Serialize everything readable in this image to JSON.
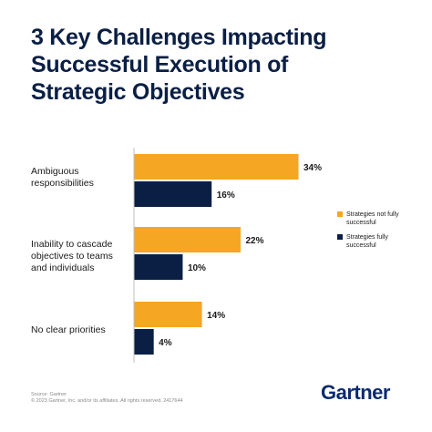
{
  "title_lines": [
    "3 Key Challenges Impacting",
    "Successful Execution of",
    "Strategic Objectives"
  ],
  "chart_data": {
    "type": "bar",
    "orientation": "horizontal",
    "categories": [
      [
        "Ambiguous",
        "responsibilities"
      ],
      [
        "Inability to cascade",
        "objectives to teams",
        "and individuals"
      ],
      [
        "No clear priorities"
      ]
    ],
    "series": [
      {
        "name": "Strategies not fully successful",
        "color": "#f5a623",
        "values": [
          34,
          22,
          14
        ],
        "labels": [
          "34%",
          "22%",
          "14%"
        ]
      },
      {
        "name": "Strategies fully successful",
        "color": "#0b1f44",
        "values": [
          16,
          10,
          4
        ],
        "labels": [
          "16%",
          "10%",
          "4%"
        ]
      }
    ],
    "xlim": [
      0,
      40
    ],
    "grid": false,
    "legend_position": "right"
  },
  "legend": [
    {
      "lines": [
        "Strategies not fully",
        "successful"
      ],
      "color": "#f5a623"
    },
    {
      "lines": [
        "Strategies fully",
        "successful"
      ],
      "color": "#0b1f44"
    }
  ],
  "footer": [
    "Source: Gartner",
    "© 2023 Gartner, Inc. and/or its affiliates. All rights reserved. 2417644"
  ],
  "logo_text": "Gartner"
}
